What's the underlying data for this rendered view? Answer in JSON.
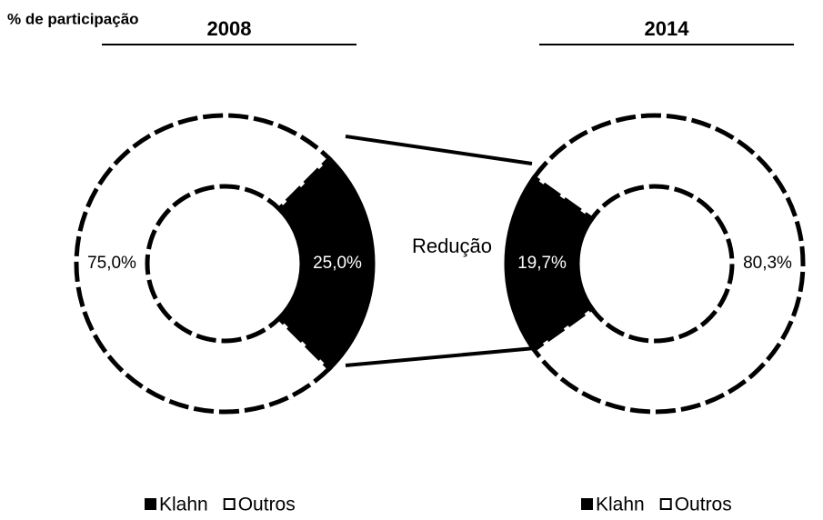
{
  "header": "% de participação",
  "annotation": "Redução",
  "chart_data": [
    {
      "type": "pie",
      "title": "2008",
      "categories": [
        "Klahn",
        "Outros"
      ],
      "values": [
        25.0,
        75.0
      ],
      "value_labels": [
        "25,0%",
        "75,0%"
      ],
      "colors": [
        "#000000",
        "#ffffff"
      ]
    },
    {
      "type": "pie",
      "title": "2014",
      "categories": [
        "Klahn",
        "Outros"
      ],
      "values": [
        19.7,
        80.3
      ],
      "value_labels": [
        "19,7%",
        "80,3%"
      ],
      "colors": [
        "#000000",
        "#ffffff"
      ]
    }
  ]
}
